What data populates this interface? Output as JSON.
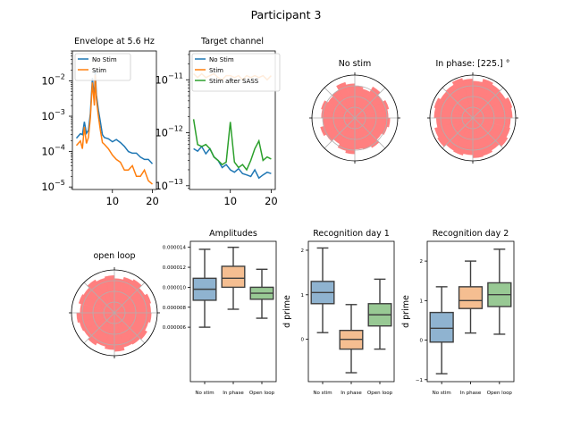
{
  "figure_title": "Participant 3",
  "chart_data": [
    {
      "type": "line",
      "title": "Envelope at 5.6 Hz",
      "xlabel": "",
      "ylabel": "",
      "yscale": "log",
      "xlim": [
        0,
        21
      ],
      "ylim": [
        8.5e-06,
        0.07
      ],
      "xticks": [
        10,
        20
      ],
      "yticks": [
        {
          "v": 0.01,
          "label": "10"
        },
        {
          "v": 0.001,
          "label": "10"
        },
        {
          "v": 0.0001,
          "label": "10"
        },
        {
          "v": 1e-05,
          "label": "10"
        }
      ],
      "ytick_exps": [
        "−2",
        "−3",
        "−4",
        "−5"
      ],
      "legend": "upper-left",
      "series": [
        {
          "name": "No Stim",
          "color": "#1f77b4",
          "x": [
            1,
            2,
            2.5,
            3,
            3.5,
            4,
            4.5,
            5,
            5.5,
            5.7,
            6,
            6.5,
            7,
            7.5,
            8,
            9,
            10,
            11,
            12,
            13,
            14,
            15,
            16,
            17,
            18,
            19,
            20
          ],
          "y": [
            0.00024,
            0.00032,
            0.0003,
            0.0007,
            0.00033,
            0.0004,
            0.0012,
            0.012,
            0.003,
            0.02,
            0.004,
            0.0015,
            0.0007,
            0.0003,
            0.00025,
            0.00023,
            0.00019,
            0.00022,
            0.00018,
            0.00014,
            0.0001,
            9e-05,
            9e-05,
            7e-05,
            6e-05,
            6e-05,
            4.5e-05
          ]
        },
        {
          "name": "Stim",
          "color": "#ff7f0e",
          "x": [
            1,
            2,
            2.5,
            3,
            3.5,
            4,
            4.5,
            5,
            5.5,
            5.7,
            6,
            6.5,
            7,
            7.5,
            8,
            9,
            10,
            11,
            12,
            13,
            14,
            15,
            16,
            17,
            18,
            19,
            20
          ],
          "y": [
            0.00015,
            0.0002,
            0.00012,
            0.0005,
            0.00017,
            0.00025,
            0.0009,
            0.009,
            0.002,
            0.015,
            0.003,
            0.001,
            0.0004,
            0.00018,
            0.00016,
            0.00012,
            8e-05,
            6e-05,
            5e-05,
            3e-05,
            3e-05,
            4e-05,
            2e-05,
            2e-05,
            3e-05,
            1.5e-05,
            1.2e-05
          ]
        }
      ]
    },
    {
      "type": "line",
      "title": "Target channel",
      "xlabel": "",
      "ylabel": "",
      "yscale": "log",
      "xlim": [
        0,
        21
      ],
      "ylim": [
        8.5e-14,
        3.5e-11
      ],
      "xticks": [
        10,
        20
      ],
      "yticks": [
        {
          "v": 1e-11,
          "label": "10"
        },
        {
          "v": 1e-12,
          "label": "10"
        },
        {
          "v": 1e-13,
          "label": "10"
        }
      ],
      "ytick_exps": [
        "−11",
        "−12",
        "−13"
      ],
      "legend": "upper-left",
      "series": [
        {
          "name": "No Stim",
          "color": "#1f77b4",
          "x": [
            1,
            2,
            3,
            4,
            5,
            6,
            7,
            8,
            9,
            10,
            11,
            12,
            13,
            14,
            15,
            16,
            17,
            18,
            19,
            20
          ],
          "y": [
            5e-13,
            4.5e-13,
            5.5e-13,
            4e-13,
            5e-13,
            3.5e-13,
            3e-13,
            2.2e-13,
            2.5e-13,
            2e-13,
            1.8e-13,
            2.1e-13,
            1.7e-13,
            1.6e-13,
            1.5e-13,
            2e-13,
            1.4e-13,
            1.6e-13,
            1.8e-13,
            1.7e-13
          ]
        },
        {
          "name": "Stim",
          "color": "#ff7f0e",
          "x": [
            1,
            2,
            3,
            4,
            5,
            6,
            7,
            8,
            9,
            10,
            11,
            12,
            13,
            14,
            15,
            16,
            17,
            18,
            19,
            20
          ],
          "y": [
            1.3e-11,
            1.1e-11,
            1.3e-11,
            1.1e-11,
            1.2e-11,
            1.3e-11,
            1.1e-11,
            1e-11,
            1.2e-11,
            1.2e-11,
            1.1e-11,
            1.2e-11,
            1e-11,
            1.2e-11,
            1.1e-11,
            1.2e-11,
            1.1e-11,
            1.2e-11,
            1e-11,
            1.2e-11
          ]
        },
        {
          "name": "Stim after SASS",
          "color": "#2ca02c",
          "x": [
            1,
            2,
            3,
            4,
            5,
            6,
            7,
            8,
            9,
            10,
            11,
            12,
            13,
            14,
            15,
            16,
            17,
            18,
            19,
            20
          ],
          "y": [
            1.8e-12,
            6e-13,
            5.5e-13,
            6e-13,
            5e-13,
            3.5e-13,
            3e-13,
            2.5e-13,
            2.8e-13,
            1.6e-12,
            2.8e-13,
            2.2e-13,
            2.5e-13,
            2e-13,
            3e-13,
            5e-13,
            7e-13,
            3e-13,
            3.5e-13,
            3.2e-13
          ]
        }
      ]
    },
    {
      "type": "polar",
      "title": "No stim",
      "fill": "#ff7f7f",
      "r": [
        0.78,
        0.82,
        0.76,
        0.84,
        0.7,
        0.74,
        0.8,
        0.86,
        0.75,
        0.72,
        0.81,
        0.78,
        0.74,
        0.83,
        0.77,
        0.7,
        0.79,
        0.84,
        0.73,
        0.76,
        0.8,
        0.72,
        0.78,
        0.82
      ]
    },
    {
      "type": "polar",
      "title": "In phase: [225.] °",
      "fill": "#ff7f7f",
      "r": [
        0.92,
        0.95,
        0.88,
        0.9,
        0.94,
        0.86,
        0.91,
        0.96,
        0.89,
        0.87,
        0.93,
        0.9,
        0.85,
        0.92,
        0.95,
        0.88,
        0.9,
        0.86,
        0.93,
        0.91,
        0.87,
        0.94,
        0.9,
        0.88
      ]
    },
    {
      "type": "polar",
      "title": "open loop",
      "fill": "#ff7f7f",
      "r": [
        0.85,
        0.88,
        0.82,
        0.9,
        0.86,
        0.8,
        0.87,
        0.84,
        0.89,
        0.83,
        0.86,
        0.8,
        0.88,
        0.84,
        0.82,
        0.87,
        0.81,
        0.86,
        0.9,
        0.83,
        0.85,
        0.88,
        0.82,
        0.86
      ]
    },
    {
      "type": "box",
      "title": "Amplitudes",
      "ylabel": "",
      "ylim": [
        5.5e-07,
        1.46e-05
      ],
      "yticks": [
        6e-06,
        8e-06,
        1e-05,
        1.2e-05,
        1.4e-05
      ],
      "ytick_labels": [
        "0.000006",
        "0.000008",
        "0.000010",
        "0.000012",
        "0.000014"
      ],
      "categories": [
        "No stim",
        "In phase",
        "Open loop"
      ],
      "colors": [
        "#8fb3d0",
        "#f5be91",
        "#98c994"
      ],
      "boxes": [
        {
          "whislo": 6e-06,
          "q1": 8.7e-06,
          "med": 9.8e-06,
          "q3": 1.09e-05,
          "whishi": 1.38e-05
        },
        {
          "whislo": 7.8e-06,
          "q1": 1e-05,
          "med": 1.09e-05,
          "q3": 1.21e-05,
          "whishi": 1.4e-05
        },
        {
          "whislo": 6.9e-06,
          "q1": 8.8e-06,
          "med": 9.4e-06,
          "q3": 1e-05,
          "whishi": 1.18e-05
        }
      ]
    },
    {
      "type": "box",
      "title": "Recognition day 1",
      "ylabel": "d prime",
      "ylim": [
        -0.95,
        2.2
      ],
      "yticks": [
        0,
        1,
        2
      ],
      "ytick_labels": [
        "0",
        "1",
        "2"
      ],
      "categories": [
        "No stim",
        "In phase",
        "Open loop"
      ],
      "colors": [
        "#8fb3d0",
        "#f5be91",
        "#98c994"
      ],
      "boxes": [
        {
          "whislo": 0.15,
          "q1": 0.8,
          "med": 1.05,
          "q3": 1.3,
          "whishi": 2.05
        },
        {
          "whislo": -0.75,
          "q1": -0.22,
          "med": 0.0,
          "q3": 0.2,
          "whishi": 0.78
        },
        {
          "whislo": -0.22,
          "q1": 0.3,
          "med": 0.55,
          "q3": 0.8,
          "whishi": 1.35
        }
      ]
    },
    {
      "type": "box",
      "title": "Recognition day 2",
      "ylabel": "d prime",
      "ylim": [
        -1.05,
        2.5
      ],
      "yticks": [
        -1,
        0,
        1,
        2
      ],
      "ytick_labels": [
        "−1",
        "0",
        "1",
        "2"
      ],
      "categories": [
        "No stim",
        "In phase",
        "Open loop"
      ],
      "colors": [
        "#8fb3d0",
        "#f5be91",
        "#98c994"
      ],
      "boxes": [
        {
          "whislo": -0.85,
          "q1": -0.05,
          "med": 0.3,
          "q3": 0.7,
          "whishi": 1.35
        },
        {
          "whislo": 0.18,
          "q1": 0.8,
          "med": 1.0,
          "q3": 1.35,
          "whishi": 2.0
        },
        {
          "whislo": 0.15,
          "q1": 0.85,
          "med": 1.15,
          "q3": 1.45,
          "whishi": 2.3
        }
      ]
    }
  ]
}
